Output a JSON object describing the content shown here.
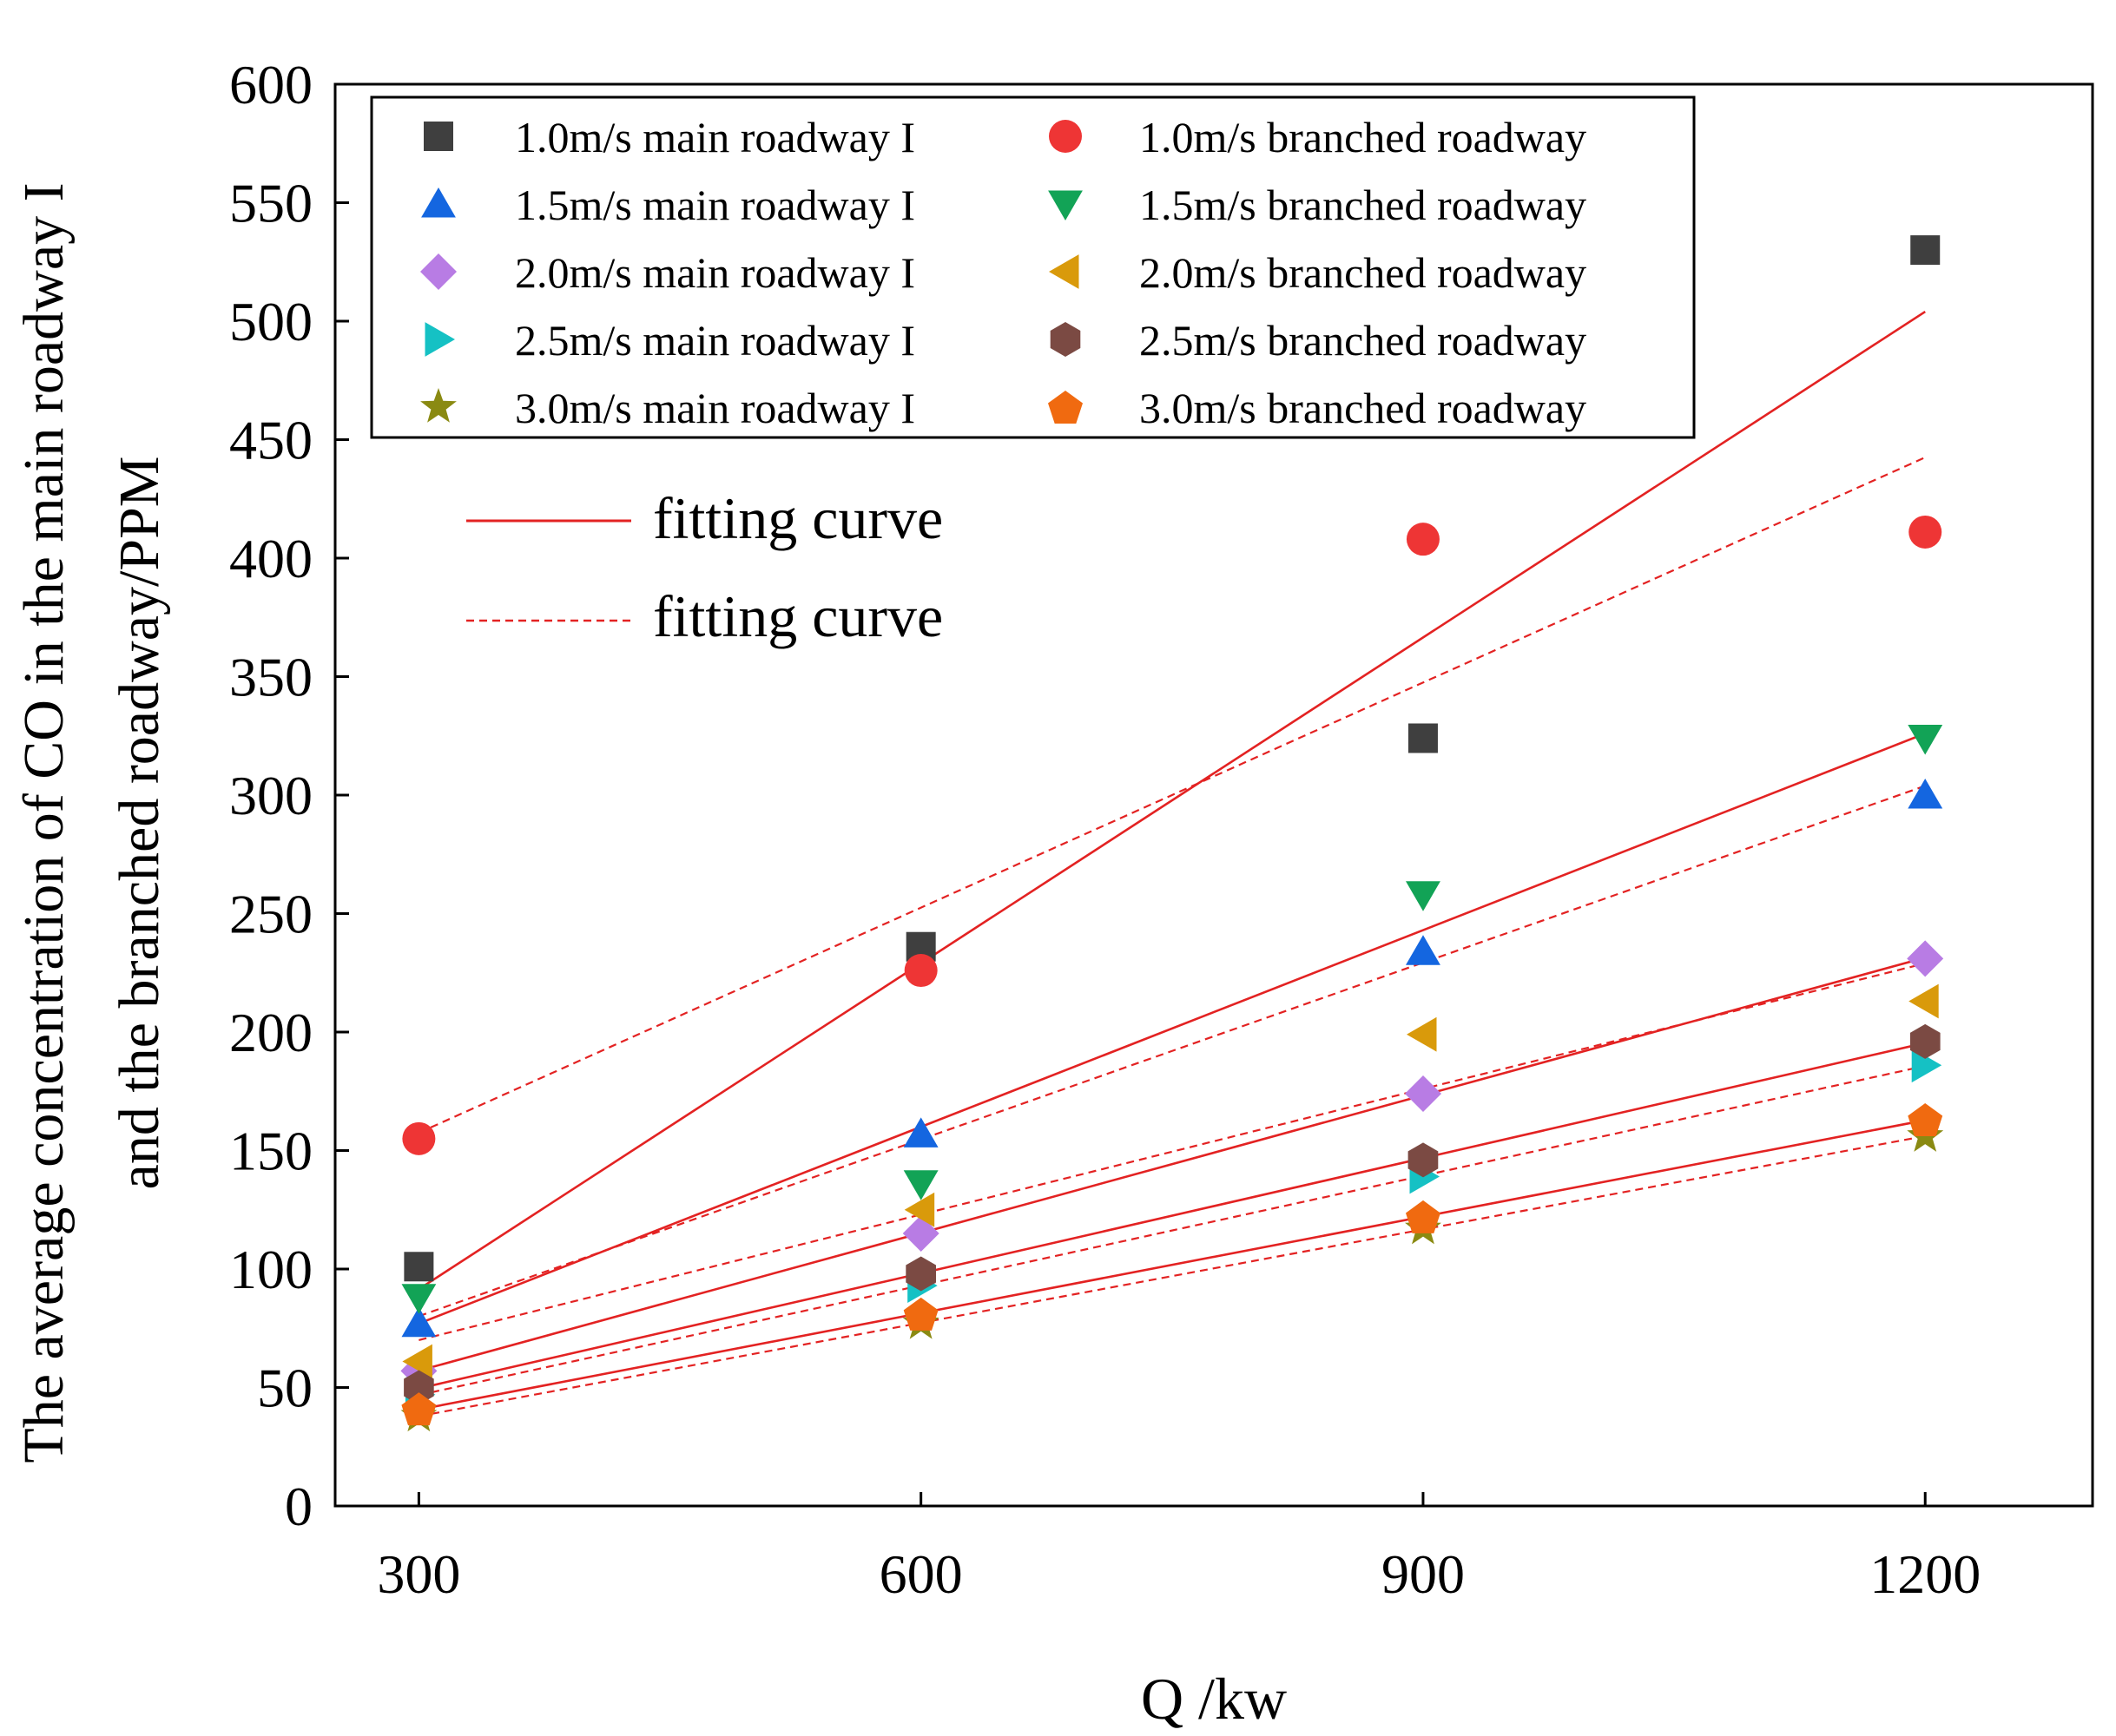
{
  "chart_data": {
    "type": "scatter",
    "title": "",
    "xlabel": "Q /kw",
    "ylabel_lines": [
      "The average concentration of CO in the main roadway I",
      "and the branched roadway/PPM"
    ],
    "xlim": [
      250,
      1300
    ],
    "ylim": [
      0,
      600
    ],
    "x_ticks": [
      300,
      600,
      900,
      1200
    ],
    "x_tick_labels": [
      "300",
      "600",
      "900",
      "1200"
    ],
    "y_ticks": [
      0,
      50,
      100,
      150,
      200,
      250,
      300,
      350,
      400,
      450,
      500,
      550,
      600
    ],
    "y_tick_labels": [
      "0",
      "50",
      "100",
      "150",
      "200",
      "250",
      "300",
      "350",
      "400",
      "450",
      "500",
      "550",
      "600"
    ],
    "x": [
      300,
      600,
      900,
      1200
    ],
    "grid": false,
    "legend_position": "top",
    "series": [
      {
        "name": "1.0m/s main roadway I",
        "marker": "square",
        "color": "#3f3f3f",
        "values": [
          101,
          236,
          324,
          530
        ],
        "fit": "solid"
      },
      {
        "name": "1.0m/s branched roadway",
        "marker": "circle",
        "color": "#ee3535",
        "values": [
          155,
          226,
          408,
          411
        ],
        "fit": "dashed"
      },
      {
        "name": "1.5m/s main roadway I",
        "marker": "triangle-up",
        "color": "#1466e0",
        "values": [
          77,
          157,
          234,
          300
        ],
        "fit": "dashed"
      },
      {
        "name": "1.5m/s branched roadway",
        "marker": "triangle-down",
        "color": "#12a356",
        "values": [
          88,
          136,
          258,
          324
        ],
        "fit": "solid"
      },
      {
        "name": "2.0m/s main roadway I",
        "marker": "diamond",
        "color": "#b87ce4",
        "values": [
          57,
          115,
          174,
          231
        ],
        "fit": "solid"
      },
      {
        "name": "2.0m/s branched roadway",
        "marker": "triangle-left",
        "color": "#d99a0b",
        "values": [
          61,
          125,
          199,
          213
        ],
        "fit": "dashed"
      },
      {
        "name": "2.5m/s main roadway I",
        "marker": "triangle-right",
        "color": "#15c1c4",
        "values": [
          47,
          93,
          139,
          186
        ],
        "fit": "dashed"
      },
      {
        "name": "2.5m/s branched roadway",
        "marker": "hexagon",
        "color": "#7b4a43",
        "values": [
          50,
          98,
          146,
          196
        ],
        "fit": "solid"
      },
      {
        "name": "3.0m/s main roadway I",
        "marker": "star",
        "color": "#8a8a12",
        "values": [
          38,
          77,
          117,
          156
        ],
        "fit": "dashed"
      },
      {
        "name": "3.0m/s branched roadway",
        "marker": "pentagon",
        "color": "#f06a10",
        "values": [
          41,
          81,
          122,
          163
        ],
        "fit": "solid"
      }
    ],
    "fit_legend": {
      "solid_label": "fitting curve",
      "dashed_label": "fitting curve",
      "line_color": "#e32222"
    }
  }
}
